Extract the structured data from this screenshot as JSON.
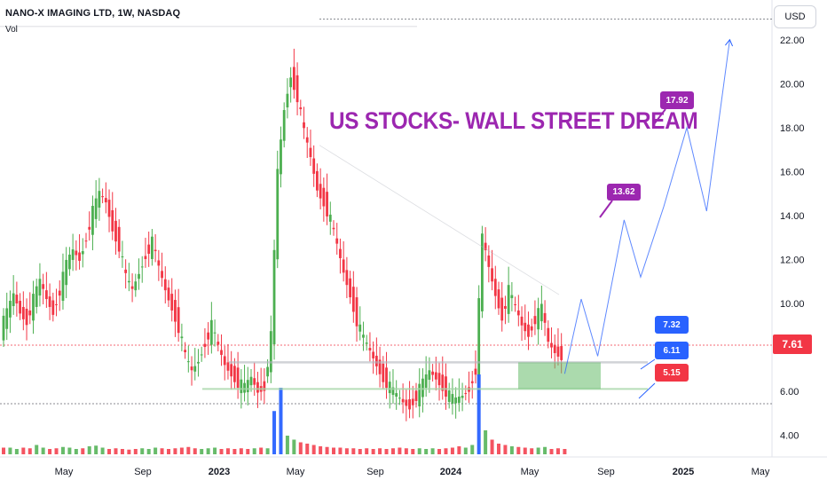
{
  "header": {
    "symbol_line": "NANO-X IMAGING LTD, 1W, NASDAQ",
    "volume_label": "Vol"
  },
  "toolbar": {
    "currency_button": "USD"
  },
  "annotations": {
    "banner_text": "US STOCKS- WALL STREET DREAM",
    "banner_color": "#9c27b0",
    "target_1": "13.62",
    "target_2": "17.92",
    "zone_top": "7.32",
    "zone_mid": "6.11",
    "zone_bottom": "5.15",
    "current_price": "7.61"
  },
  "colors": {
    "up": "#4caf50",
    "down": "#f23645",
    "vol_spike": "#2962ff",
    "projection": "#2962ff",
    "label_purple": "#9c27b0",
    "label_blue": "#2962ff",
    "label_red": "#f23645",
    "zone_fill": "#66bb6a"
  },
  "chart_data": {
    "type": "candlestick",
    "title": "NANO-X IMAGING LTD, 1W, NASDAQ",
    "interval": "1W",
    "currency": "USD",
    "y_axis": {
      "ticks": [
        "22.00",
        "20.00",
        "18.00",
        "16.00",
        "14.00",
        "12.00",
        "10.00",
        "8.00",
        "6.00",
        "4.00"
      ],
      "range": [
        3.5,
        23
      ]
    },
    "x_axis": {
      "ticks": [
        "May",
        "Sep",
        "2023",
        "May",
        "Sep",
        "2024",
        "May",
        "Sep",
        "2025",
        "May"
      ]
    },
    "price_series": [
      [
        0,
        8.8
      ],
      [
        2,
        9.6
      ],
      [
        4,
        10.4
      ],
      [
        6,
        9.6
      ],
      [
        8,
        9.2
      ],
      [
        10,
        10.2
      ],
      [
        12,
        11.0
      ],
      [
        14,
        10.2
      ],
      [
        16,
        9.6
      ],
      [
        18,
        10.6
      ],
      [
        20,
        11.8
      ],
      [
        22,
        12.4
      ],
      [
        24,
        12.0
      ],
      [
        26,
        13.0
      ],
      [
        28,
        14.2
      ],
      [
        30,
        15.0
      ],
      [
        32,
        14.6
      ],
      [
        34,
        13.4
      ],
      [
        36,
        12.6
      ],
      [
        38,
        11.2
      ],
      [
        40,
        10.6
      ],
      [
        42,
        11.4
      ],
      [
        44,
        12.2
      ],
      [
        46,
        12.8
      ],
      [
        48,
        11.6
      ],
      [
        50,
        10.6
      ],
      [
        52,
        9.8
      ],
      [
        54,
        8.9
      ],
      [
        56,
        7.6
      ],
      [
        58,
        6.9
      ],
      [
        60,
        7.4
      ],
      [
        62,
        8.2
      ],
      [
        64,
        9.0
      ],
      [
        66,
        8.0
      ],
      [
        68,
        7.2
      ],
      [
        70,
        6.8
      ],
      [
        72,
        6.4
      ],
      [
        74,
        6.2
      ],
      [
        76,
        6.6
      ],
      [
        78,
        6.0
      ],
      [
        80,
        6.2
      ],
      [
        82,
        8.5
      ],
      [
        84,
        16.0
      ],
      [
        86,
        18.8
      ],
      [
        88,
        20.4
      ],
      [
        90,
        19.4
      ],
      [
        92,
        17.8
      ],
      [
        94,
        16.6
      ],
      [
        96,
        15.2
      ],
      [
        98,
        14.6
      ],
      [
        100,
        13.8
      ],
      [
        102,
        12.6
      ],
      [
        104,
        11.4
      ],
      [
        106,
        10.4
      ],
      [
        108,
        9.2
      ],
      [
        110,
        8.4
      ],
      [
        112,
        7.8
      ],
      [
        114,
        7.2
      ],
      [
        116,
        6.6
      ],
      [
        118,
        6.2
      ],
      [
        120,
        5.8
      ],
      [
        122,
        5.5
      ],
      [
        124,
        5.3
      ],
      [
        126,
        5.8
      ],
      [
        128,
        6.4
      ],
      [
        130,
        6.9
      ],
      [
        132,
        6.6
      ],
      [
        134,
        6.2
      ],
      [
        136,
        5.8
      ],
      [
        138,
        5.6
      ],
      [
        140,
        5.8
      ],
      [
        142,
        6.1
      ],
      [
        144,
        7.0
      ],
      [
        146,
        13.0
      ],
      [
        148,
        11.6
      ],
      [
        150,
        10.4
      ],
      [
        152,
        9.4
      ],
      [
        154,
        10.6
      ],
      [
        156,
        9.8
      ],
      [
        158,
        9.0
      ],
      [
        160,
        8.6
      ],
      [
        162,
        9.3
      ],
      [
        164,
        9.8
      ],
      [
        166,
        8.2
      ],
      [
        168,
        7.8
      ],
      [
        170,
        7.6
      ]
    ],
    "volume_series": [
      [
        0,
        1
      ],
      [
        2,
        1
      ],
      [
        4,
        0.8
      ],
      [
        6,
        1
      ],
      [
        8,
        0.9
      ],
      [
        10,
        1.4
      ],
      [
        12,
        1
      ],
      [
        14,
        0.8
      ],
      [
        16,
        0.9
      ],
      [
        18,
        1.1
      ],
      [
        20,
        1
      ],
      [
        22,
        0.8
      ],
      [
        24,
        0.9
      ],
      [
        26,
        1.2
      ],
      [
        28,
        1.3
      ],
      [
        30,
        1
      ],
      [
        32,
        0.8
      ],
      [
        34,
        0.9
      ],
      [
        36,
        0.8
      ],
      [
        38,
        0.7
      ],
      [
        40,
        0.8
      ],
      [
        42,
        0.9
      ],
      [
        44,
        0.8
      ],
      [
        46,
        1
      ],
      [
        48,
        0.9
      ],
      [
        50,
        0.8
      ],
      [
        52,
        0.9
      ],
      [
        54,
        1
      ],
      [
        56,
        1.1
      ],
      [
        58,
        0.9
      ],
      [
        60,
        0.8
      ],
      [
        62,
        0.9
      ],
      [
        64,
        1
      ],
      [
        66,
        0.8
      ],
      [
        68,
        0.9
      ],
      [
        70,
        0.8
      ],
      [
        72,
        0.9
      ],
      [
        74,
        0.8
      ],
      [
        76,
        0.9
      ],
      [
        78,
        1
      ],
      [
        80,
        0.9
      ],
      [
        82,
        6.5
      ],
      [
        84,
        10
      ],
      [
        86,
        2.8
      ],
      [
        88,
        2.2
      ],
      [
        90,
        1.8
      ],
      [
        92,
        1.6
      ],
      [
        94,
        1.4
      ],
      [
        96,
        1.2
      ],
      [
        98,
        1.1
      ],
      [
        100,
        1
      ],
      [
        102,
        1
      ],
      [
        104,
        0.9
      ],
      [
        106,
        0.9
      ],
      [
        108,
        0.8
      ],
      [
        110,
        0.9
      ],
      [
        112,
        0.8
      ],
      [
        114,
        0.9
      ],
      [
        116,
        0.8
      ],
      [
        118,
        0.9
      ],
      [
        120,
        1
      ],
      [
        122,
        0.9
      ],
      [
        124,
        0.8
      ],
      [
        126,
        0.9
      ],
      [
        128,
        0.8
      ],
      [
        130,
        0.9
      ],
      [
        132,
        0.8
      ],
      [
        134,
        0.9
      ],
      [
        136,
        1
      ],
      [
        138,
        1.2
      ],
      [
        140,
        1
      ],
      [
        142,
        1.4
      ],
      [
        144,
        12
      ],
      [
        146,
        3.6
      ],
      [
        148,
        2.2
      ],
      [
        150,
        1.6
      ],
      [
        152,
        1.4
      ],
      [
        154,
        1.2
      ],
      [
        156,
        1.1
      ],
      [
        158,
        1
      ],
      [
        160,
        0.9
      ],
      [
        162,
        1
      ],
      [
        164,
        1.1
      ],
      [
        166,
        0.8
      ],
      [
        168,
        0.9
      ],
      [
        170,
        0.8
      ]
    ],
    "projection_path": [
      [
        170,
        6.8
      ],
      [
        175,
        10.2
      ],
      [
        180,
        7.6
      ],
      [
        188,
        13.8
      ],
      [
        193,
        11.2
      ],
      [
        200,
        14.4
      ],
      [
        207,
        18.0
      ],
      [
        213,
        14.2
      ],
      [
        220,
        22.0
      ]
    ],
    "levels": [
      {
        "name": "resistance",
        "value": 7.32
      },
      {
        "name": "support",
        "value": 6.11
      },
      {
        "name": "low",
        "value": 5.15
      }
    ],
    "target_labels": [
      13.62,
      17.92
    ],
    "last_price": 7.61
  }
}
